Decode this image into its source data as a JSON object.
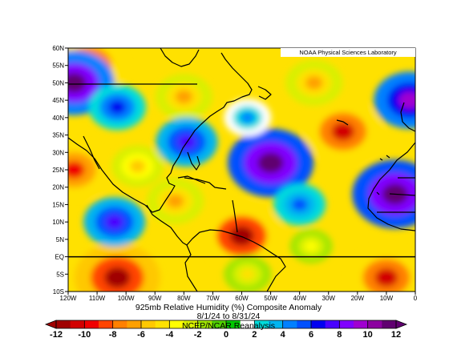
{
  "credit": "NOAA Physical Sciences Laboratory",
  "title": "925mb Relative Humidity (%) Composite Anomaly",
  "date_range": "8/1/24  to 8/31/24",
  "source": "NCEP/NCAR Reanalysis",
  "lat_labels": [
    "60N",
    "55N",
    "50N",
    "45N",
    "40N",
    "35N",
    "30N",
    "25N",
    "20N",
    "15N",
    "10N",
    "5N",
    "EQ",
    "5S",
    "10S"
  ],
  "lon_labels": [
    "120W",
    "110W",
    "100W",
    "90W",
    "80W",
    "70W",
    "60W",
    "50W",
    "40W",
    "30W",
    "20W",
    "10W",
    "0"
  ],
  "colorbar": {
    "ticks": [
      "-12",
      "-10",
      "-8",
      "-6",
      "-4",
      "-2",
      "0",
      "2",
      "4",
      "6",
      "8",
      "10",
      "12"
    ],
    "colors": [
      "#a00000",
      "#d20000",
      "#f00000",
      "#ff4400",
      "#ff8000",
      "#ffa000",
      "#ffc800",
      "#ffe100",
      "#ffff00",
      "#d8f000",
      "#a0e600",
      "#50d200",
      "#00c800",
      "#ffffff",
      "#00dcdc",
      "#00b4f0",
      "#0080ff",
      "#0050ff",
      "#0000f0",
      "#4800ff",
      "#8000ff",
      "#a000d0",
      "#8c00a0",
      "#600070"
    ]
  },
  "chart_data": {
    "type": "heatmap",
    "title": "925mb Relative Humidity (%) Composite Anomaly",
    "subtitle": "8/1/24  to 8/31/24",
    "variable": "925mb Relative Humidity (%) Composite Anomaly",
    "lon_range": [
      -120,
      0
    ],
    "lat_range": [
      -10,
      60
    ],
    "value_range": [
      -12,
      12
    ],
    "regions": [
      {
        "lon": -103,
        "lat": -6,
        "value": -12
      },
      {
        "lon": -60,
        "lat": 6,
        "value": -11
      },
      {
        "lon": -113,
        "lat": 55,
        "value": -10
      },
      {
        "lon": -25,
        "lat": 36,
        "value": -10
      },
      {
        "lon": -10,
        "lat": -6,
        "value": -10
      },
      {
        "lon": -118,
        "lat": 25,
        "value": -9
      },
      {
        "lon": -80,
        "lat": 46,
        "value": -6
      },
      {
        "lon": -35,
        "lat": 50,
        "value": -6
      },
      {
        "lon": -96,
        "lat": 26,
        "value": -5
      },
      {
        "lon": -83,
        "lat": 16,
        "value": -6
      },
      {
        "lon": -58,
        "lat": -5,
        "value": -4
      },
      {
        "lon": -36,
        "lat": 3,
        "value": -3
      },
      {
        "lon": -118,
        "lat": 50,
        "value": 11
      },
      {
        "lon": -103,
        "lat": 43,
        "value": 6
      },
      {
        "lon": -79,
        "lat": 33,
        "value": 7
      },
      {
        "lon": -50,
        "lat": 27,
        "value": 12
      },
      {
        "lon": -7,
        "lat": 18,
        "value": 12
      },
      {
        "lon": -2,
        "lat": 45,
        "value": 9
      },
      {
        "lon": -40,
        "lat": 15,
        "value": 5
      },
      {
        "lon": -104,
        "lat": 10,
        "value": 7
      },
      {
        "lon": -58,
        "lat": 40,
        "value": 4
      }
    ]
  }
}
